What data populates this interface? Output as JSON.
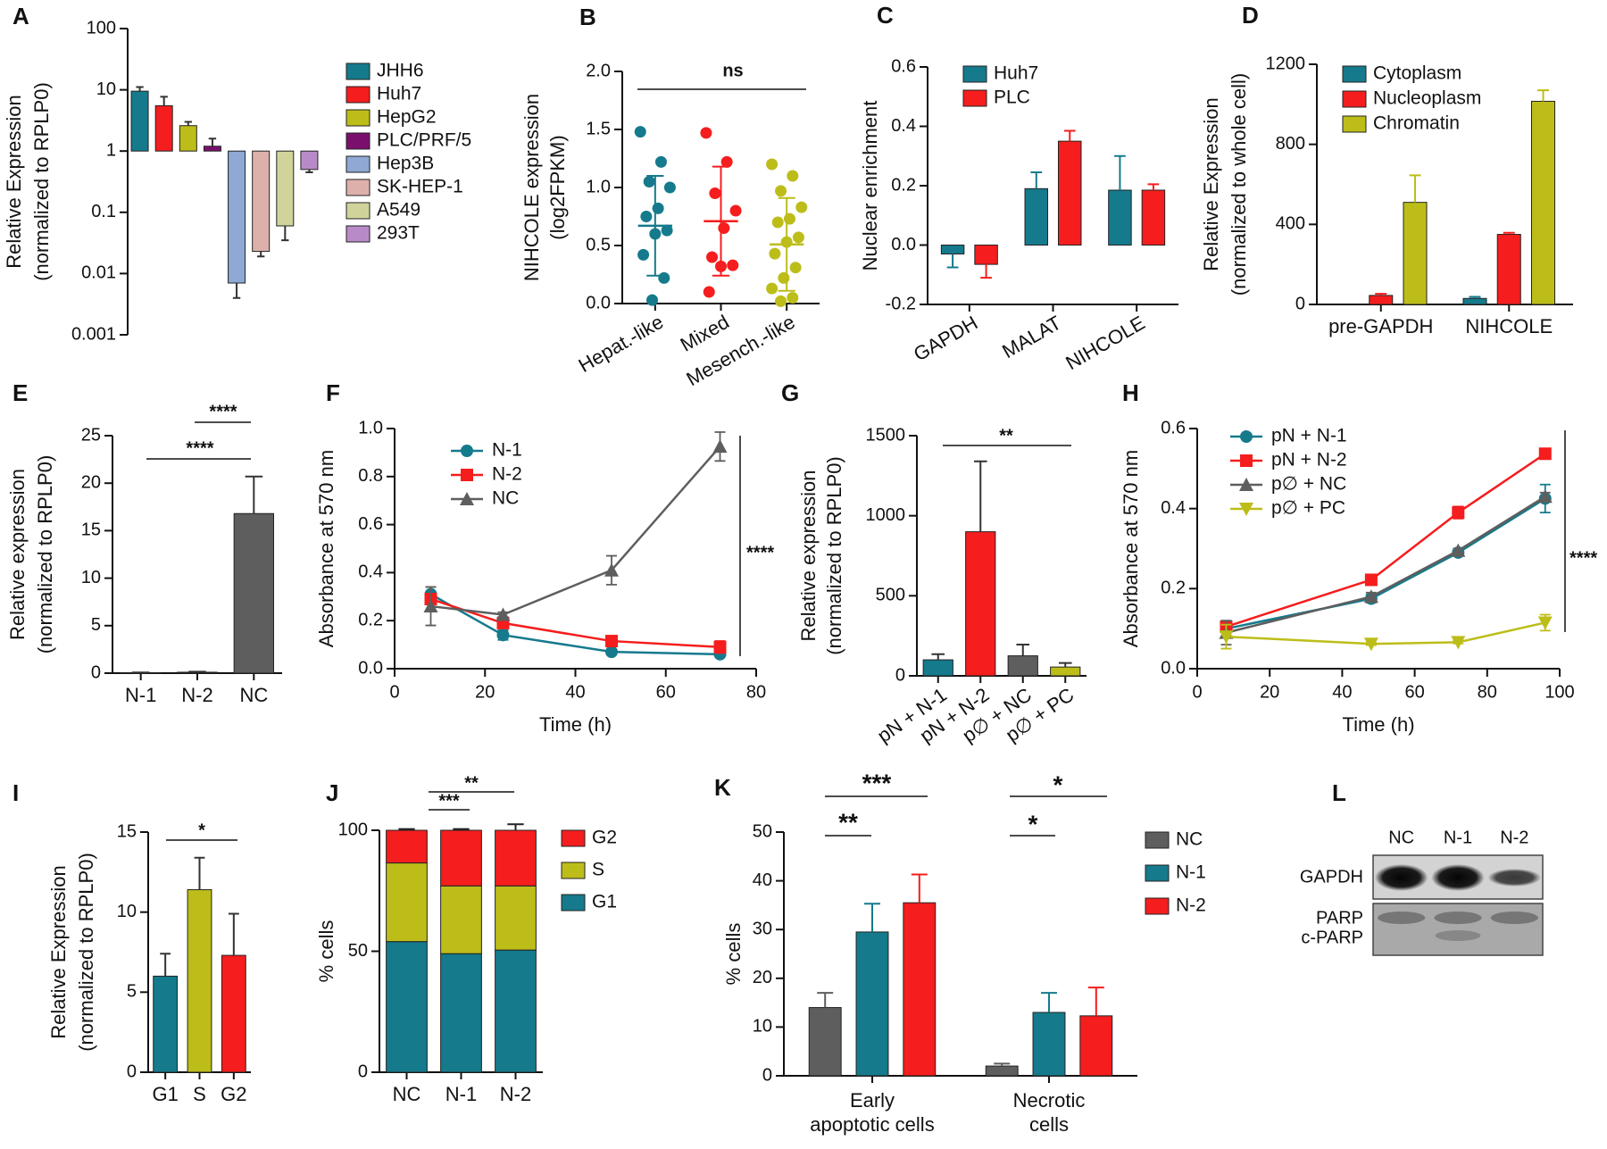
{
  "chart_data": [
    {
      "panel": "A",
      "type": "bar",
      "log": true,
      "ylabel": [
        "Relative Expression",
        "(normalized to RPLP0)"
      ],
      "categories": [
        "JHH6",
        "Huh7",
        "HepG2",
        "PLC/PRF/5",
        "Hep3B",
        "SK-HEP-1",
        "A549",
        "293T"
      ],
      "values": [
        9.5,
        5.5,
        2.6,
        1.2,
        0.007,
        0.023,
        0.06,
        0.5
      ],
      "errors": [
        1.6,
        2.2,
        0.4,
        0.4,
        0.003,
        0.004,
        0.025,
        0.05
      ],
      "colors": [
        "#157a8c",
        "#f51d1d",
        "#bdbd1a",
        "#7a0f6e",
        "#8fa8d4",
        "#deb0ac",
        "#d0d49a",
        "#b98ac8"
      ],
      "baseline": 1,
      "ylim": [
        0.001,
        100
      ],
      "yticks": [
        0.001,
        0.01,
        0.1,
        1,
        10,
        100
      ],
      "legend": "right"
    },
    {
      "panel": "B",
      "type": "strip",
      "ylabel": [
        "NIHCOLE expression",
        "(log2FPKM)"
      ],
      "categories": [
        "Hepat.-like",
        "Mixed",
        "Mesench.-like"
      ],
      "series": [
        {
          "color": "#157a8c",
          "values": [
            1.48,
            1.22,
            1.05,
            1.0,
            0.82,
            0.75,
            0.63,
            0.6,
            0.42,
            0.22,
            0.03
          ],
          "mean": 0.67,
          "sd": 0.43
        },
        {
          "color": "#f51d1d",
          "values": [
            1.47,
            1.22,
            0.95,
            0.8,
            0.65,
            0.4,
            0.33,
            0.32,
            0.1
          ],
          "mean": 0.71,
          "sd": 0.47
        },
        {
          "color": "#bdbd1a",
          "values": [
            1.2,
            1.1,
            0.97,
            0.83,
            0.73,
            0.7,
            0.57,
            0.53,
            0.43,
            0.31,
            0.22,
            0.13,
            0.05,
            0.02
          ],
          "mean": 0.51,
          "sd": 0.4
        }
      ],
      "ylim": [
        0,
        2
      ],
      "yticks": [
        {
          "value": 0,
          "label": "0.0"
        },
        0.5,
        {
          "value": 1,
          "label": "1.0"
        },
        1.5,
        {
          "value": 2,
          "label": "2.0"
        }
      ],
      "annotations": [
        "ns"
      ]
    },
    {
      "panel": "C",
      "type": "bar",
      "ylabel": [
        "Nuclear enrichment"
      ],
      "categories": [
        "GAPDH",
        "MALAT",
        "NIHCOLE"
      ],
      "series": [
        {
          "name": "Huh7",
          "color": "#157a8c",
          "values": [
            -0.03,
            0.19,
            0.185
          ],
          "errors": [
            0.045,
            0.055,
            0.115
          ]
        },
        {
          "name": "PLC",
          "color": "#f51d1d",
          "values": [
            -0.065,
            0.35,
            0.185
          ],
          "errors": [
            0.045,
            0.035,
            0.02
          ]
        }
      ],
      "ylim": [
        -0.2,
        0.6
      ],
      "yticks": [
        -0.2,
        {
          "value": 0,
          "label": "0.0"
        },
        0.2,
        0.4,
        0.6
      ],
      "legend": "top-left"
    },
    {
      "panel": "D",
      "type": "bar",
      "ylabel": [
        "Relative Expression",
        "(normalized to whole cell)"
      ],
      "categories": [
        "pre-GAPDH",
        "NIHCOLE"
      ],
      "series": [
        {
          "name": "Cytoplasm",
          "color": "#157a8c",
          "values": [
            0,
            30
          ],
          "errors": [
            0,
            8
          ]
        },
        {
          "name": "Nucleoplasm",
          "color": "#f51d1d",
          "values": [
            45,
            350
          ],
          "errors": [
            8,
            8
          ]
        },
        {
          "name": "Chromatin",
          "color": "#bdbd1a",
          "values": [
            510,
            1015
          ],
          "errors": [
            135,
            55
          ]
        }
      ],
      "ylim": [
        0,
        1200
      ],
      "yticks": [
        0,
        400,
        800,
        1200
      ],
      "legend": "top-left"
    },
    {
      "panel": "E",
      "type": "bar",
      "ylabel": [
        "Relative expression",
        "(normalized to RPLP0)"
      ],
      "categories": [
        "N-1",
        "N-2",
        "NC"
      ],
      "values": [
        0.05,
        0.1,
        16.8
      ],
      "errors": [
        0.02,
        0.05,
        3.9
      ],
      "colors": [
        "#157a8c",
        "#7a0f6e",
        "#5e5e5e"
      ],
      "ylim": [
        0,
        25
      ],
      "yticks": [
        0,
        5,
        10,
        15,
        20,
        25
      ],
      "annotations": [
        "****",
        "****"
      ]
    },
    {
      "panel": "F",
      "type": "line",
      "ylabel": [
        "Absorbance at 570 nm"
      ],
      "xlabel": "Time (h)",
      "x": [
        8,
        24,
        48,
        72
      ],
      "series": [
        {
          "name": "N-1",
          "color": "#157a8c",
          "marker": "circle",
          "values": [
            0.31,
            0.14,
            0.07,
            0.06
          ],
          "errors": [
            0.03,
            0.02,
            0.01,
            0.01
          ]
        },
        {
          "name": "N-2",
          "color": "#f51d1d",
          "marker": "square",
          "values": [
            0.29,
            0.19,
            0.115,
            0.09
          ],
          "errors": [
            0.05,
            0.01,
            0.01,
            0.025
          ]
        },
        {
          "name": "NC",
          "color": "#5e5e5e",
          "marker": "triangle",
          "values": [
            0.26,
            0.225,
            0.41,
            0.925
          ],
          "errors": [
            0.08,
            0.01,
            0.06,
            0.06
          ]
        }
      ],
      "xlim": [
        0,
        80
      ],
      "xticks": [
        0,
        20,
        40,
        60,
        80
      ],
      "ylim": [
        0,
        1
      ],
      "yticks": [
        {
          "value": 0,
          "label": "0.0"
        },
        0.2,
        0.4,
        0.6,
        0.8,
        {
          "value": 1,
          "label": "1.0"
        }
      ],
      "legend": "top-left",
      "annotations": [
        "****"
      ]
    },
    {
      "panel": "G",
      "type": "bar",
      "ylabel": [
        "Relative expression",
        "(normalized to RPLP0)"
      ],
      "categories": [
        "pN + N-1",
        "pN + N-2",
        "p∅ + NC",
        "p∅ + PC"
      ],
      "values": [
        100,
        900,
        125,
        55
      ],
      "errors": [
        35,
        440,
        70,
        25
      ],
      "colors": [
        "#157a8c",
        "#f51d1d",
        "#5e5e5e",
        "#bdbd1a"
      ],
      "ylim": [
        0,
        1500
      ],
      "yticks": [
        0,
        500,
        1000,
        1500
      ],
      "annotations": [
        "**"
      ]
    },
    {
      "panel": "H",
      "type": "line",
      "ylabel": [
        "Absorbance at 570 nm"
      ],
      "xlabel": "Time (h)",
      "x": [
        8,
        48,
        72,
        96
      ],
      "series": [
        {
          "name": "pN + N-1",
          "color": "#157a8c",
          "marker": "circle",
          "values": [
            0.1,
            0.175,
            0.29,
            0.425
          ],
          "errors": [
            0.01,
            0.01,
            0.005,
            0.035
          ]
        },
        {
          "name": "pN + N-2",
          "color": "#f51d1d",
          "marker": "square",
          "values": [
            0.105,
            0.222,
            0.39,
            0.537
          ],
          "errors": [
            0.005,
            0.005,
            0.015,
            0.005
          ]
        },
        {
          "name": "p∅ + NC",
          "color": "#5e5e5e",
          "marker": "triangle",
          "values": [
            0.09,
            0.18,
            0.295,
            0.43
          ],
          "errors": [
            0.03,
            0.01,
            0.005,
            0.01
          ]
        },
        {
          "name": "p∅ + PC",
          "color": "#bdbd1a",
          "marker": "triangle-down",
          "values": [
            0.08,
            0.062,
            0.066,
            0.115
          ],
          "errors": [
            0.03,
            0.003,
            0.003,
            0.02
          ]
        }
      ],
      "xlim": [
        0,
        100
      ],
      "xticks": [
        0,
        20,
        40,
        60,
        80,
        100
      ],
      "ylim": [
        0,
        0.6
      ],
      "yticks": [
        {
          "value": 0,
          "label": "0.0"
        },
        0.2,
        0.4,
        0.6
      ],
      "legend": "top-left",
      "annotations": [
        "****"
      ]
    },
    {
      "panel": "I",
      "type": "bar",
      "ylabel": [
        "Relative Expression",
        "(normalized to RPLP0)"
      ],
      "categories": [
        "G1",
        "S",
        "G2"
      ],
      "values": [
        6,
        11.4,
        7.3
      ],
      "errors": [
        1.4,
        2,
        2.6
      ],
      "colors": [
        "#157a8c",
        "#bdbd1a",
        "#f51d1d"
      ],
      "ylim": [
        0,
        15
      ],
      "yticks": [
        0,
        5,
        10,
        15
      ],
      "annotations": [
        "*"
      ]
    },
    {
      "panel": "J",
      "type": "bar",
      "stacked": true,
      "ylabel": [
        "% cells"
      ],
      "categories": [
        "NC",
        "N-1",
        "N-2"
      ],
      "series": [
        {
          "name": "G1",
          "color": "#157a8c",
          "values": [
            54,
            49,
            50.5
          ],
          "errors": [
            1,
            0.7,
            3
          ]
        },
        {
          "name": "S",
          "color": "#bdbd1a",
          "values": [
            32.5,
            28,
            26.5
          ],
          "errors": [
            2.5,
            0.5,
            0.5
          ]
        },
        {
          "name": "G2",
          "color": "#f51d1d",
          "values": [
            13.5,
            23,
            23
          ],
          "errors": [
            0.5,
            0.5,
            2.5
          ]
        }
      ],
      "ylim": [
        0,
        100
      ],
      "yticks": [
        0,
        50,
        100
      ],
      "legend": "right",
      "annotations": [
        "**",
        "***"
      ]
    },
    {
      "panel": "K",
      "type": "bar",
      "ylabel": [
        "% cells"
      ],
      "categories": [
        "Early\napoptotic cells",
        "Necrotic\ncells"
      ],
      "series": [
        {
          "name": "NC",
          "color": "#5e5e5e",
          "values": [
            14,
            2
          ],
          "errors": [
            3,
            0.5
          ]
        },
        {
          "name": "N-1",
          "color": "#157a8c",
          "values": [
            29.5,
            13
          ],
          "errors": [
            5.8,
            4
          ]
        },
        {
          "name": "N-2",
          "color": "#f51d1d",
          "values": [
            35.5,
            12.3
          ],
          "errors": [
            5.8,
            5.8
          ]
        }
      ],
      "ylim": [
        0,
        50
      ],
      "yticks": [
        0,
        10,
        20,
        30,
        40,
        50
      ],
      "legend": "right",
      "annotations": [
        "***",
        "**",
        "*",
        "*"
      ]
    },
    {
      "panel": "L",
      "type": "blot",
      "lanes": [
        "NC",
        "N-1",
        "N-2"
      ],
      "rows": [
        "GAPDH",
        "PARP",
        "c-PARP"
      ]
    }
  ]
}
